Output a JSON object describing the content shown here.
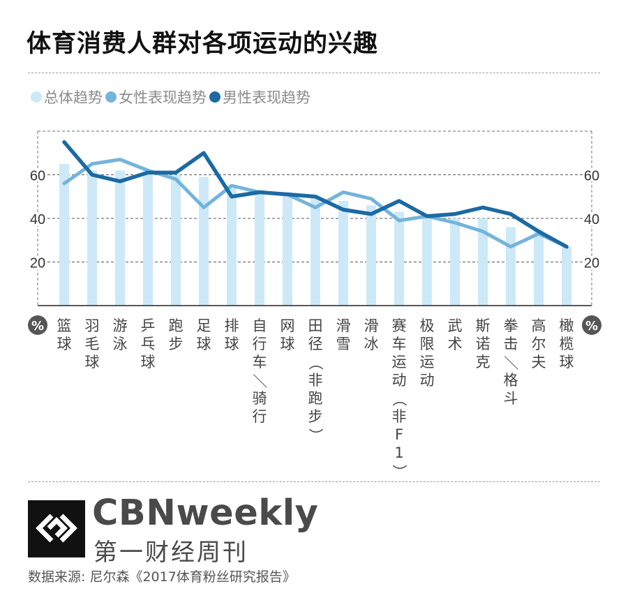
{
  "title": "体育消费人群对各项运动的兴趣",
  "legend": [
    {
      "label": "总体趋势",
      "color": "#cde9f7"
    },
    {
      "label": "女性表现趋势",
      "color": "#74b4dc"
    },
    {
      "label": "男性表现趋势",
      "color": "#1b6aa3"
    }
  ],
  "chart_data": {
    "type": "bar",
    "categories": [
      "篮球",
      "羽毛球",
      "游泳",
      "乒乓球",
      "跑步",
      "足球",
      "排球",
      "自行车／骑行",
      "网球",
      "田径（非跑步）",
      "滑雪",
      "滑冰",
      "赛车运动（非F1）",
      "极限运动",
      "武术",
      "斯诺克",
      "拳击／格斗",
      "高尔夫",
      "橄榄球"
    ],
    "series": [
      {
        "name": "总体趋势",
        "kind": "bar",
        "color": "#cde9f7",
        "values": [
          65,
          62,
          62,
          62,
          60,
          59,
          55,
          53,
          52,
          50,
          48,
          46,
          43,
          42,
          40,
          40,
          36,
          35,
          27
        ]
      },
      {
        "name": "女性表现趋势",
        "kind": "line",
        "color": "#74b4dc",
        "values": [
          56,
          65,
          67,
          62,
          58,
          45,
          55,
          52,
          51,
          45,
          52,
          49,
          39,
          41,
          38,
          34,
          27,
          33,
          27
        ]
      },
      {
        "name": "男性表现趋势",
        "kind": "line",
        "color": "#1b6aa3",
        "values": [
          75,
          60,
          57,
          61,
          61,
          70,
          50,
          52,
          51,
          50,
          44,
          42,
          48,
          41,
          42,
          45,
          42,
          34,
          27
        ]
      }
    ],
    "yticks": [
      20,
      40,
      60
    ],
    "ylim": [
      0,
      80
    ],
    "unit": "%",
    "grid": true
  },
  "footer": {
    "brand_en": "CBNweekly",
    "brand_zh": "第一财经周刊",
    "source": "数据来源: 尼尔森《2017体育粉丝研究报告》"
  }
}
